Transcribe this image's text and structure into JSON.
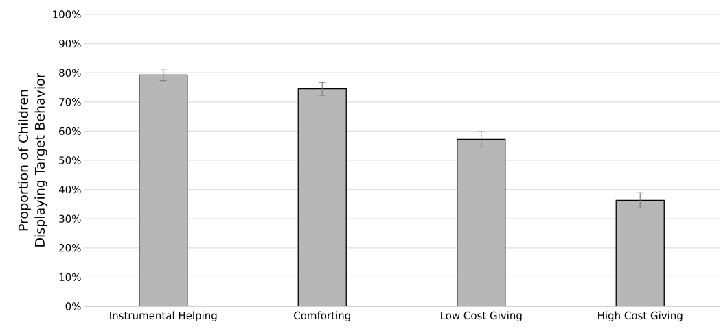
{
  "chart_data": {
    "type": "bar",
    "ylabel": "Proportion of Children Displaying Target Behavior",
    "categories": [
      "Instrumental Helping",
      "Comforting",
      "Low Cost Giving",
      "High Cost Giving"
    ],
    "values": [
      79.3,
      74.5,
      57.2,
      36.3
    ],
    "errors": [
      2.0,
      2.2,
      2.6,
      2.6
    ],
    "color": "#b7b7b7",
    "ylim": [
      0,
      100
    ],
    "yticks": [
      {
        "value": 0,
        "label": "0%"
      },
      {
        "value": 10,
        "label": "10%"
      },
      {
        "value": 20,
        "label": "20%"
      },
      {
        "value": 30,
        "label": "30%"
      },
      {
        "value": 40,
        "label": "40%"
      },
      {
        "value": 50,
        "label": "50%"
      },
      {
        "value": 60,
        "label": "60%"
      },
      {
        "value": 70,
        "label": "70%"
      },
      {
        "value": 80,
        "label": "80%"
      },
      {
        "value": 90,
        "label": "90%"
      },
      {
        "value": 100,
        "label": "100%"
      }
    ],
    "grid": "y"
  }
}
